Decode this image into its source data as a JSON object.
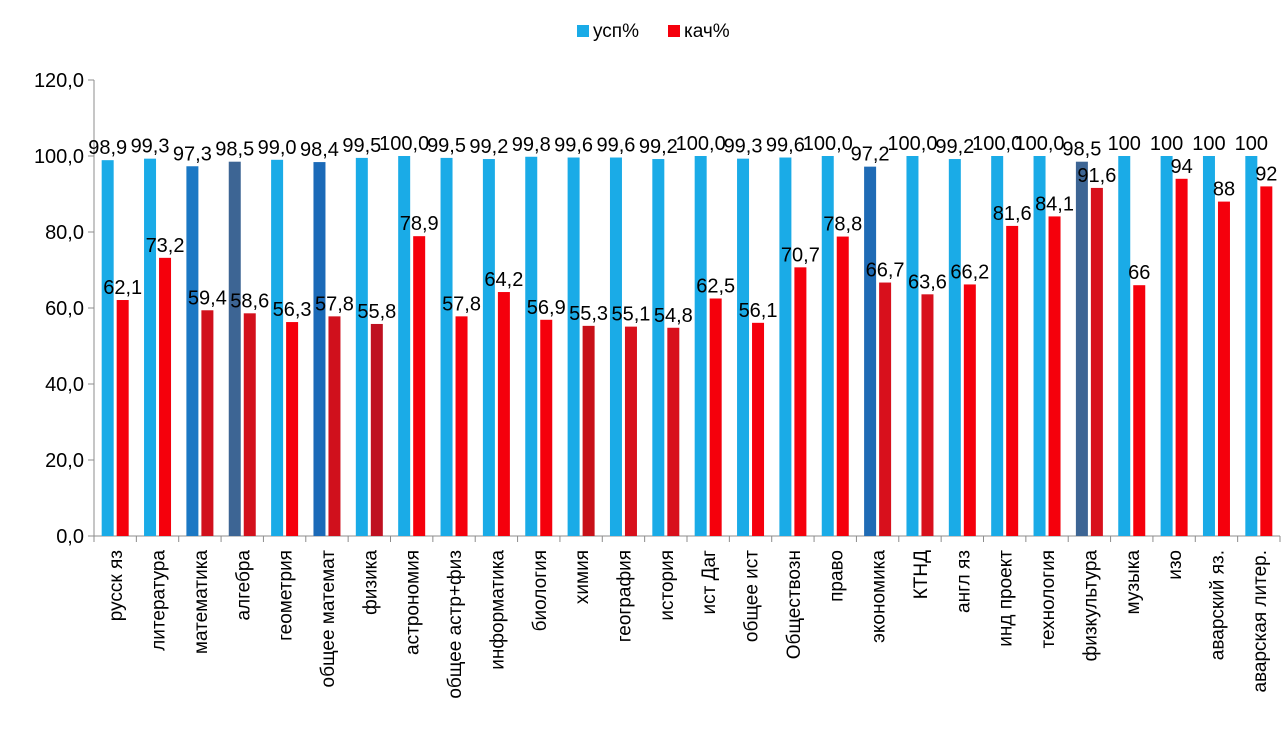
{
  "chart_data": {
    "type": "bar",
    "title": "",
    "xlabel": "",
    "ylabel": "",
    "ylim": [
      0,
      120
    ],
    "yticks": [
      0,
      20,
      40,
      60,
      80,
      100,
      120
    ],
    "ytick_labels": [
      "0,0",
      "20,0",
      "40,0",
      "60,0",
      "80,0",
      "100,0",
      "120,0"
    ],
    "grid": false,
    "legend_position": "top",
    "categories": [
      "русск яз",
      "литература",
      "математика",
      "алгебра",
      "геометрия",
      "общее математ",
      "физика",
      "астрономия",
      "общее астр+физ",
      "информатика",
      "биология",
      "химия",
      "география",
      "история",
      "ист Даг",
      "общее ист",
      "Обществозн",
      "право",
      "экономика",
      "КТНД",
      "англ яз",
      "инд проект",
      "технология",
      "физкультура",
      "музыка",
      "изо",
      "аварский яз.",
      "аварская литер."
    ],
    "series": [
      {
        "name": "усп%",
        "color": "#1AABE7",
        "values": [
          98.9,
          99.3,
          97.3,
          98.5,
          99.0,
          98.4,
          99.5,
          100.0,
          99.5,
          99.2,
          99.8,
          99.6,
          99.6,
          99.2,
          100.0,
          99.3,
          99.6,
          100.0,
          97.2,
          100.0,
          99.2,
          100.0,
          100.0,
          98.5,
          100,
          100,
          100,
          100
        ],
        "labels": [
          "98,9",
          "99,3",
          "97,3",
          "98,5",
          "99,0",
          "98,4",
          "99,5",
          "100,0",
          "99,5",
          "99,2",
          "99,8",
          "99,6",
          "99,6",
          "99,2",
          "100,0",
          "99,3",
          "99,6",
          "100,0",
          "97,2",
          "100,0",
          "99,2",
          "100,0",
          "100,0",
          "98,5",
          "100",
          "100",
          "100",
          "100"
        ],
        "point_colors": {
          "2": "#1B78C4",
          "3": "#3D6594",
          "5": "#1B6AB8",
          "18": "#1F6BB5",
          "23": "#3D6594"
        }
      },
      {
        "name": "кач%",
        "color": "#F5000C",
        "values": [
          62.1,
          73.2,
          59.4,
          58.6,
          56.3,
          57.8,
          55.8,
          78.9,
          57.8,
          64.2,
          56.9,
          55.3,
          55.1,
          54.8,
          62.5,
          56.1,
          70.7,
          78.8,
          66.7,
          63.6,
          66.2,
          81.6,
          84.1,
          91.6,
          66,
          94,
          88,
          92
        ],
        "labels": [
          "62,1",
          "73,2",
          "59,4",
          "58,6",
          "56,3",
          "57,8",
          "55,8",
          "78,9",
          "57,8",
          "64,2",
          "56,9",
          "55,3",
          "55,1",
          "54,8",
          "62,5",
          "56,1",
          "70,7",
          "78,8",
          "66,7",
          "63,6",
          "66,2",
          "81,6",
          "84,1",
          "91,6",
          "66",
          "94",
          "88",
          "92"
        ],
        "point_colors": {
          "2": "#D1101C",
          "3": "#D3101C",
          "5": "#D0101C",
          "6": "#BF1020",
          "11": "#C81018",
          "12": "#D8101C",
          "13": "#D8101C",
          "18": "#D8101C",
          "19": "#D8101C",
          "23": "#D8101C"
        }
      }
    ]
  }
}
